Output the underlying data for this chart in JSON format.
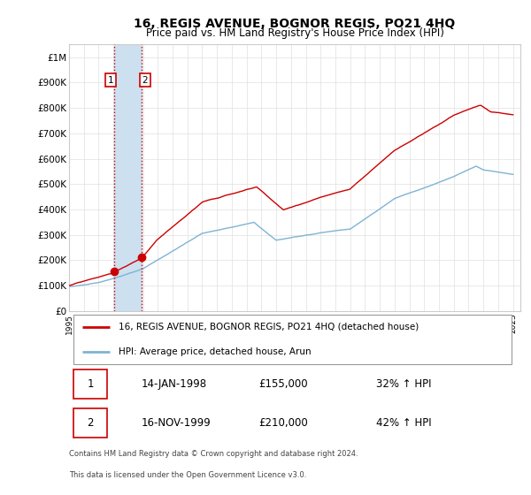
{
  "title": "16, REGIS AVENUE, BOGNOR REGIS, PO21 4HQ",
  "subtitle": "Price paid vs. HM Land Registry's House Price Index (HPI)",
  "ylim": [
    0,
    1050000
  ],
  "yticks": [
    0,
    100000,
    200000,
    300000,
    400000,
    500000,
    600000,
    700000,
    800000,
    900000,
    1000000
  ],
  "ytick_labels": [
    "£0",
    "£100K",
    "£200K",
    "£300K",
    "£400K",
    "£500K",
    "£600K",
    "£700K",
    "£800K",
    "£900K",
    "£1M"
  ],
  "sale1_date": 1998.04,
  "sale1_price": 155000,
  "sale2_date": 1999.88,
  "sale2_price": 210000,
  "legend_entry1": "16, REGIS AVENUE, BOGNOR REGIS, PO21 4HQ (detached house)",
  "legend_entry2": "HPI: Average price, detached house, Arun",
  "table_row1": [
    "1",
    "14-JAN-1998",
    "£155,000",
    "32% ↑ HPI"
  ],
  "table_row2": [
    "2",
    "16-NOV-1999",
    "£210,000",
    "42% ↑ HPI"
  ],
  "footnote1": "Contains HM Land Registry data © Crown copyright and database right 2024.",
  "footnote2": "This data is licensed under the Open Government Licence v3.0.",
  "red_color": "#cc0000",
  "blue_color": "#7fb3d3",
  "grid_color": "#e0e0e0",
  "span_color": "#cce0f0"
}
